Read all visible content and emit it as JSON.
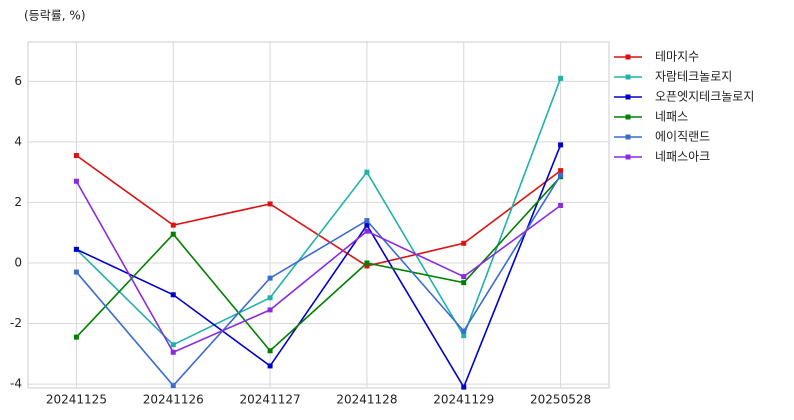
{
  "chart_data": {
    "type": "line",
    "y_label": "(등락률, %)",
    "categories": [
      "20241125",
      "20241126",
      "20241127",
      "20241128",
      "20241129",
      "20250528"
    ],
    "series": [
      {
        "name": "테마지수",
        "color": "#dd1111",
        "values": [
          3.55,
          1.25,
          1.95,
          -0.1,
          0.65,
          3.05
        ]
      },
      {
        "name": "자람테크놀로지",
        "color": "#20b2aa",
        "values": [
          0.45,
          -2.7,
          -1.15,
          3.0,
          -2.4,
          6.1
        ]
      },
      {
        "name": "오픈엣지테크놀로지",
        "color": "#0000cc",
        "values": [
          0.45,
          -1.05,
          -3.4,
          1.25,
          -4.1,
          3.9
        ]
      },
      {
        "name": "네패스",
        "color": "#008000",
        "values": [
          -2.45,
          0.95,
          -2.9,
          0.0,
          -0.65,
          2.85
        ]
      },
      {
        "name": "에이직랜드",
        "color": "#3a6bd1",
        "values": [
          -0.3,
          -4.05,
          -0.5,
          1.4,
          -2.25,
          2.9
        ]
      },
      {
        "name": "네패스아크",
        "color": "#8a2be2",
        "values": [
          2.7,
          -2.95,
          -1.55,
          1.05,
          -0.45,
          1.9
        ]
      }
    ],
    "ylim": [
      -4.13,
      7.3
    ],
    "yticks": [
      -4,
      -2,
      0,
      2,
      4,
      6
    ],
    "grid": true,
    "legend": "right"
  }
}
